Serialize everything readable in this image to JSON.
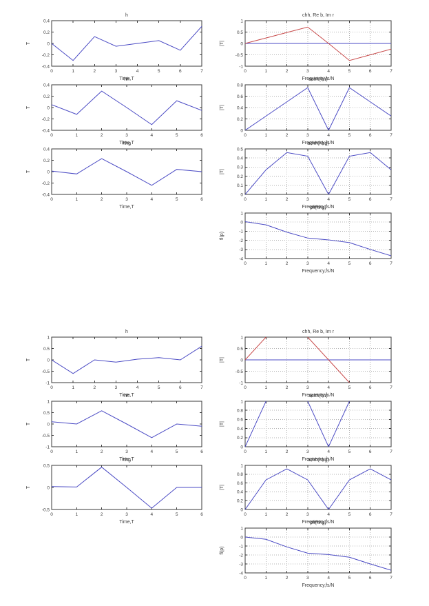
{
  "page": {
    "background": "#ffffff"
  },
  "colors": {
    "line_blue": "#4A4AC4",
    "line_red": "#C84A4A",
    "axis": "#3a3a3a",
    "grid": "#b5b5b5",
    "text": "#3a3a3a"
  },
  "chart_data": [
    {
      "id": "f1-h",
      "figure": 1,
      "type": "line",
      "title": "h",
      "xlabel": "Time,T",
      "ylabel": "T",
      "xlim": [
        0,
        7
      ],
      "ylim": [
        -0.4,
        0.4
      ],
      "xticks": [
        0,
        1,
        2,
        3,
        4,
        5,
        6,
        7
      ],
      "yticks": [
        -0.4,
        -0.2,
        0,
        0.2,
        0.4
      ],
      "grid": false,
      "series": [
        {
          "name": "h",
          "color": "#4A4AC4",
          "x": [
            0,
            1,
            2,
            3,
            4,
            5,
            6,
            7
          ],
          "values": [
            0,
            -0.3,
            0.12,
            -0.05,
            0,
            0.05,
            -0.12,
            0.3
          ]
        }
      ]
    },
    {
      "id": "f1-hh",
      "figure": 1,
      "type": "line",
      "title": "hh",
      "xlabel": "Time,T",
      "ylabel": "T",
      "xlim": [
        0,
        6
      ],
      "ylim": [
        -0.4,
        0.4
      ],
      "xticks": [
        0,
        1,
        2,
        3,
        4,
        5,
        6
      ],
      "yticks": [
        -0.4,
        -0.2,
        0,
        0.2,
        0.4
      ],
      "grid": false,
      "series": [
        {
          "name": "hh",
          "color": "#4A4AC4",
          "x": [
            0,
            1,
            2,
            3,
            4,
            5,
            6
          ],
          "values": [
            0.05,
            -0.12,
            0.29,
            0,
            -0.3,
            0.12,
            -0.05
          ]
        }
      ]
    },
    {
      "id": "f1-hhg",
      "figure": 1,
      "type": "line",
      "title": "hhg",
      "xlabel": "Time,T",
      "ylabel": "T",
      "xlim": [
        0,
        6
      ],
      "ylim": [
        -0.4,
        0.4
      ],
      "xticks": [
        0,
        1,
        2,
        3,
        4,
        5,
        6
      ],
      "yticks": [
        -0.4,
        -0.2,
        0,
        0.2,
        0.4
      ],
      "grid": false,
      "series": [
        {
          "name": "hhg",
          "color": "#4A4AC4",
          "x": [
            0,
            1,
            2,
            3,
            4,
            5,
            6
          ],
          "values": [
            0.01,
            -0.04,
            0.23,
            0,
            -0.24,
            0.04,
            0
          ]
        }
      ]
    },
    {
      "id": "f1-chh",
      "figure": 1,
      "type": "line",
      "title": "chh, Re b, Im r",
      "xlabel": "Frequency,fs/N",
      "ylabel": "|T|",
      "xlim": [
        0,
        7
      ],
      "ylim": [
        -1,
        1
      ],
      "xticks": [
        0,
        1,
        2,
        3,
        4,
        5,
        6,
        7
      ],
      "yticks": [
        -1,
        -0.5,
        0,
        0.5,
        1
      ],
      "grid": true,
      "series": [
        {
          "name": "Re",
          "color": "#4A4AC4",
          "x": [
            0,
            1,
            2,
            3,
            4,
            5,
            6,
            7
          ],
          "values": [
            0,
            0,
            0,
            0,
            0,
            0,
            0,
            0
          ]
        },
        {
          "name": "Im",
          "color": "#C84A4A",
          "x": [
            0,
            1,
            2,
            3,
            4,
            5,
            6,
            7
          ],
          "values": [
            0,
            0.24,
            0.48,
            0.72,
            0,
            -0.75,
            -0.5,
            -0.25
          ]
        }
      ]
    },
    {
      "id": "f1-achh-hh",
      "figure": 1,
      "type": "line",
      "title": "achh(hh)",
      "xlabel": "Frequency,fs/N",
      "ylabel": "|T|",
      "xlim": [
        0,
        7
      ],
      "ylim": [
        0,
        0.8
      ],
      "xticks": [
        0,
        1,
        2,
        3,
        4,
        5,
        6,
        7
      ],
      "yticks": [
        0,
        0.2,
        0.4,
        0.6,
        0.8
      ],
      "grid": true,
      "series": [
        {
          "name": "achh(hh)",
          "color": "#4A4AC4",
          "x": [
            0,
            1,
            2,
            3,
            4,
            5,
            6,
            7
          ],
          "values": [
            0,
            0.25,
            0.5,
            0.75,
            0,
            0.75,
            0.5,
            0.25
          ]
        }
      ]
    },
    {
      "id": "f1-achh-hhg",
      "figure": 1,
      "type": "line",
      "title": "achh(hhg)",
      "xlabel": "Frequency,fs/N",
      "ylabel": "|T|",
      "xlim": [
        0,
        7
      ],
      "ylim": [
        0,
        0.5
      ],
      "xticks": [
        0,
        1,
        2,
        3,
        4,
        5,
        6,
        7
      ],
      "yticks": [
        0,
        0.1,
        0.2,
        0.3,
        0.4,
        0.5
      ],
      "grid": true,
      "series": [
        {
          "name": "achh(hhg)",
          "color": "#4A4AC4",
          "x": [
            0,
            1,
            2,
            3,
            4,
            5,
            6,
            7
          ],
          "values": [
            0,
            0.27,
            0.46,
            0.42,
            0,
            0.42,
            0.46,
            0.27
          ]
        }
      ]
    },
    {
      "id": "f1-pfi",
      "figure": 1,
      "type": "line",
      "title": "pfi(hhg)",
      "xlabel": "Frequency,fs/N",
      "ylabel": "fi(p)",
      "xlim": [
        0,
        7
      ],
      "ylim": [
        -4,
        1
      ],
      "xticks": [
        0,
        1,
        2,
        3,
        4,
        5,
        6,
        7
      ],
      "yticks": [
        -4,
        -3,
        -2,
        -1,
        0,
        1
      ],
      "grid": true,
      "series": [
        {
          "name": "pfi(hhg)",
          "color": "#4A4AC4",
          "x": [
            0,
            1,
            2,
            3,
            4,
            5,
            6,
            7
          ],
          "values": [
            0.05,
            -0.3,
            -1.1,
            -1.75,
            -1.95,
            -2.25,
            -3.0,
            -3.7
          ]
        }
      ]
    },
    {
      "id": "f2-h",
      "figure": 2,
      "type": "line",
      "title": "h",
      "xlabel": "Time,T",
      "ylabel": "T",
      "xlim": [
        0,
        7
      ],
      "ylim": [
        -1,
        1
      ],
      "xticks": [
        0,
        1,
        2,
        3,
        4,
        5,
        6,
        7
      ],
      "yticks": [
        -1,
        -0.5,
        0,
        0.5,
        1
      ],
      "grid": false,
      "series": [
        {
          "name": "h",
          "color": "#4A4AC4",
          "x": [
            0,
            1,
            2,
            3,
            4,
            5,
            6,
            7
          ],
          "values": [
            0,
            -0.6,
            0,
            -0.1,
            0.03,
            0.1,
            0,
            0.6
          ]
        }
      ]
    },
    {
      "id": "f2-hh",
      "figure": 2,
      "type": "line",
      "title": "hh",
      "xlabel": "Time,T",
      "ylabel": "T",
      "xlim": [
        0,
        6
      ],
      "ylim": [
        -1,
        1
      ],
      "xticks": [
        0,
        1,
        2,
        3,
        4,
        5,
        6
      ],
      "yticks": [
        -1,
        -0.5,
        0,
        0.5,
        1
      ],
      "grid": false,
      "series": [
        {
          "name": "hh",
          "color": "#4A4AC4",
          "x": [
            0,
            1,
            2,
            3,
            4,
            5,
            6
          ],
          "values": [
            0.1,
            0,
            0.58,
            0,
            -0.6,
            0,
            -0.1
          ]
        }
      ]
    },
    {
      "id": "f2-hhg",
      "figure": 2,
      "type": "line",
      "title": "hhg",
      "xlabel": "Time,T",
      "ylabel": "T",
      "xlim": [
        0,
        6
      ],
      "ylim": [
        -0.5,
        0.5
      ],
      "xticks": [
        0,
        1,
        2,
        3,
        4,
        5,
        6
      ],
      "yticks": [
        -0.5,
        0,
        0.5
      ],
      "grid": false,
      "series": [
        {
          "name": "hhg",
          "color": "#4A4AC4",
          "x": [
            0,
            1,
            2,
            3,
            4,
            5,
            6
          ],
          "values": [
            0.02,
            0.01,
            0.46,
            0,
            -0.47,
            0,
            0
          ]
        }
      ]
    },
    {
      "id": "f2-chh",
      "figure": 2,
      "type": "line",
      "title": "chh, Re b, Im r",
      "xlabel": "Frequency,fs/N",
      "ylabel": "|T|",
      "xlim": [
        0,
        7
      ],
      "ylim": [
        -1,
        1
      ],
      "xticks": [
        0,
        1,
        2,
        3,
        4,
        5,
        6,
        7
      ],
      "yticks": [
        -1,
        -0.5,
        0,
        0.5,
        1
      ],
      "grid": true,
      "series": [
        {
          "name": "Re",
          "color": "#4A4AC4",
          "x": [
            0,
            1,
            2,
            3,
            4,
            5,
            6,
            7
          ],
          "values": [
            0,
            0,
            0,
            0,
            0,
            0,
            0,
            0
          ]
        },
        {
          "name": "Im",
          "color": "#C84A4A",
          "x": [
            0,
            1,
            2,
            3,
            4,
            5,
            6,
            7
          ],
          "values": [
            0,
            1,
            2,
            1,
            0,
            -1,
            -2,
            -1
          ]
        }
      ]
    },
    {
      "id": "f2-achh-hh",
      "figure": 2,
      "type": "line",
      "title": "achh(hh)",
      "xlabel": "Frequency,fs/N",
      "ylabel": "|T|",
      "xlim": [
        0,
        7
      ],
      "ylim": [
        0,
        1
      ],
      "xticks": [
        0,
        1,
        2,
        3,
        4,
        5,
        6,
        7
      ],
      "yticks": [
        0,
        0.2,
        0.4,
        0.6,
        0.8,
        1
      ],
      "grid": true,
      "series": [
        {
          "name": "achh(hh)",
          "color": "#4A4AC4",
          "x": [
            0,
            1,
            2,
            3,
            4,
            5,
            6,
            7
          ],
          "values": [
            0,
            1,
            2,
            1,
            0,
            1,
            2,
            1
          ]
        }
      ]
    },
    {
      "id": "f2-achh-hhg",
      "figure": 2,
      "type": "line",
      "title": "achh(hhg)",
      "xlabel": "Frequency,fs/N",
      "ylabel": "|T|",
      "xlim": [
        0,
        7
      ],
      "ylim": [
        0,
        1
      ],
      "xticks": [
        0,
        1,
        2,
        3,
        4,
        5,
        6,
        7
      ],
      "yticks": [
        0,
        0.2,
        0.4,
        0.6,
        0.8,
        1
      ],
      "grid": true,
      "series": [
        {
          "name": "achh(hhg)",
          "color": "#4A4AC4",
          "x": [
            0,
            1,
            2,
            3,
            4,
            5,
            6,
            7
          ],
          "values": [
            0,
            0.67,
            0.92,
            0.67,
            0,
            0.67,
            0.92,
            0.67
          ]
        }
      ]
    },
    {
      "id": "f2-pfi",
      "figure": 2,
      "type": "line",
      "title": "pfi(hhg)",
      "xlabel": "Frequency,fs/N",
      "ylabel": "fi(p)",
      "xlim": [
        0,
        7
      ],
      "ylim": [
        -4,
        1
      ],
      "xticks": [
        0,
        1,
        2,
        3,
        4,
        5,
        6,
        7
      ],
      "yticks": [
        -4,
        -3,
        -2,
        -1,
        0,
        1
      ],
      "grid": true,
      "series": [
        {
          "name": "pfi(hhg)",
          "color": "#4A4AC4",
          "x": [
            0,
            1,
            2,
            3,
            4,
            5,
            6,
            7
          ],
          "values": [
            0,
            -0.25,
            -1.1,
            -1.8,
            -1.95,
            -2.25,
            -3.0,
            -3.7
          ]
        }
      ]
    }
  ]
}
